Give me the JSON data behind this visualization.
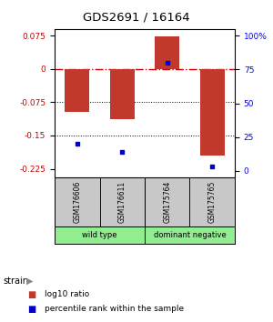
{
  "title": "GDS2691 / 16164",
  "samples": [
    "GSM176606",
    "GSM176611",
    "GSM175764",
    "GSM175765"
  ],
  "log10_ratio": [
    -0.097,
    -0.113,
    0.073,
    -0.195
  ],
  "percentile_rank": [
    20,
    14,
    80,
    3
  ],
  "bar_color": "#c0392b",
  "dot_color": "#0000cc",
  "ylim_left": [
    -0.245,
    0.09
  ],
  "ylim_right": [
    -5,
    105
  ],
  "yticks_left": [
    0.075,
    0,
    -0.075,
    -0.15,
    -0.225
  ],
  "yticks_right": [
    100,
    75,
    50,
    25,
    0
  ],
  "ytick_right_labels": [
    "100%",
    "75",
    "50",
    "25",
    "0"
  ],
  "hline_0_color": "#cc0000",
  "hline_dotted_values": [
    -0.075,
    -0.15
  ],
  "strain_label": "strain",
  "legend_bar_label": "log10 ratio",
  "legend_dot_label": "percentile rank within the sample",
  "group1_label": "wild type",
  "group2_label": "dominant negative",
  "group_color": "#90ee90",
  "sample_box_color": "#c8c8c8"
}
